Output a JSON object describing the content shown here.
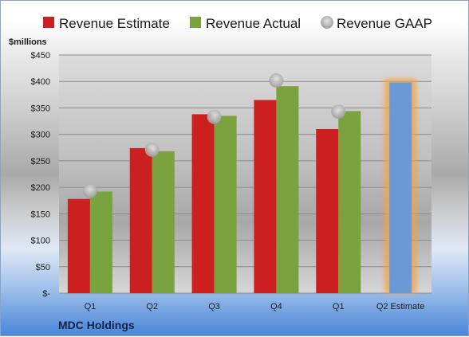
{
  "company": "MDC Holdings",
  "chart_data": {
    "type": "bar",
    "ylabel": "$millions",
    "ylim": [
      0,
      450
    ],
    "yticks": [
      0,
      50,
      100,
      150,
      200,
      250,
      300,
      350,
      400,
      450
    ],
    "ytick_labels": [
      "$-",
      "$50",
      "$100",
      "$150",
      "$200",
      "$250",
      "$300",
      "$350",
      "$400",
      "$450"
    ],
    "categories": [
      "Q1",
      "Q2",
      "Q3",
      "Q4",
      "Q1",
      "Q2 Estimate"
    ],
    "series": [
      {
        "name": "Revenue Estimate",
        "type": "bar",
        "color": "#cc1f1f",
        "values": [
          178,
          274,
          338,
          365,
          310,
          null
        ]
      },
      {
        "name": "Revenue Actual",
        "type": "bar",
        "color": "#7aa23e",
        "values": [
          192,
          268,
          335,
          391,
          344,
          null
        ]
      },
      {
        "name": "Revenue GAAP",
        "type": "scatter",
        "color": "#b8b8b8",
        "values": [
          193,
          271,
          333,
          402,
          343,
          null
        ]
      },
      {
        "name": "Q2 Estimate",
        "type": "bar",
        "color": "#6a9ad6",
        "highlight": "#f5a340",
        "values": [
          null,
          null,
          null,
          null,
          null,
          398
        ]
      }
    ],
    "legend": "top",
    "grid": true
  }
}
